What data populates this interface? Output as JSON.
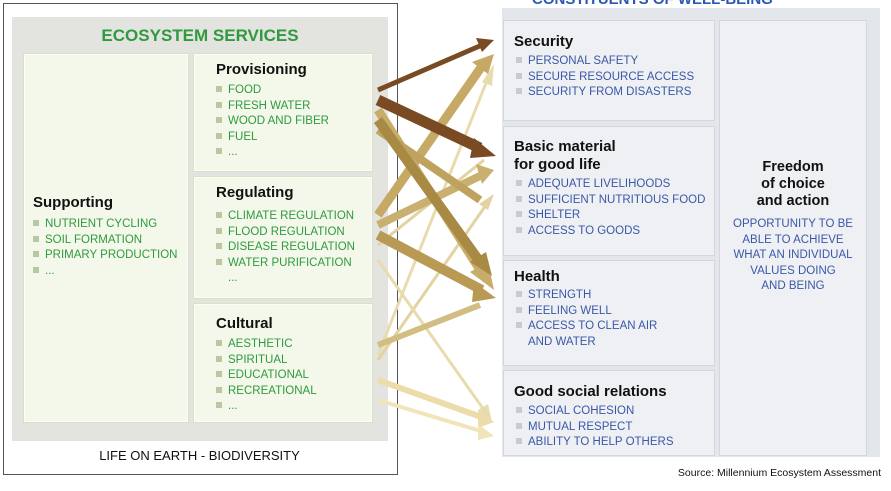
{
  "ecosystem_services": {
    "title": "ECOSYSTEM SERVICES",
    "footer": "LIFE ON EARTH - BIODIVERSITY",
    "supporting": {
      "title": "Supporting",
      "items": [
        "NUTRIENT CYCLING",
        "SOIL FORMATION",
        "PRIMARY PRODUCTION",
        "..."
      ]
    },
    "provisioning": {
      "title": "Provisioning",
      "items": [
        "FOOD",
        "FRESH WATER",
        "WOOD AND FIBER",
        "FUEL",
        "..."
      ]
    },
    "regulating": {
      "title": "Regulating",
      "items": [
        "CLIMATE REGULATION",
        "FLOOD REGULATION",
        "DISEASE REGULATION",
        "WATER PURIFICATION",
        "..."
      ]
    },
    "cultural": {
      "title": "Cultural",
      "items": [
        "AESTHETIC",
        "SPIRITUAL",
        "EDUCATIONAL",
        "RECREATIONAL",
        "..."
      ]
    }
  },
  "constituents": {
    "title": "CONSTITUENTS OF WELL-BEING",
    "security": {
      "title": "Security",
      "items": [
        "PERSONAL SAFETY",
        "SECURE RESOURCE ACCESS",
        "SECURITY FROM DISASTERS"
      ]
    },
    "basic_material": {
      "title_line1": "Basic material",
      "title_line2": "for good life",
      "items": [
        "ADEQUATE LIVELIHOODS",
        "SUFFICIENT NUTRITIOUS FOOD",
        "SHELTER",
        "ACCESS TO GOODS"
      ]
    },
    "health": {
      "title": "Health",
      "items": [
        "STRENGTH",
        "FEELING WELL",
        "ACCESS TO CLEAN AIR",
        "AND WATER"
      ]
    },
    "social": {
      "title": "Good social relations",
      "items": [
        "SOCIAL COHESION",
        "MUTUAL RESPECT",
        "ABILITY TO HELP OTHERS"
      ]
    },
    "freedom": {
      "title_lines": [
        "Freedom",
        "of choice",
        "and action"
      ],
      "text_lines": [
        "OPPORTUNITY TO BE",
        "ABLE TO ACHIEVE",
        "WHAT AN INDIVIDUAL",
        "VALUES DOING",
        "AND BEING"
      ]
    }
  },
  "source": "Source: Millennium Ecosystem Assessment",
  "colors": {
    "strong": "#7a4a22",
    "medium": "#a88a45",
    "weak": "#e3d3a0",
    "service_text": "#2f9a3e",
    "wellbeing_text": "#3a58a8"
  }
}
